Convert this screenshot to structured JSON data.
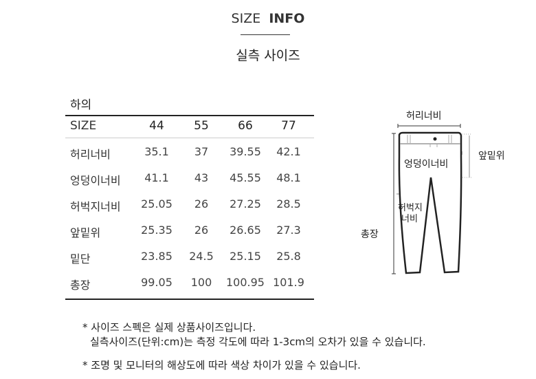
{
  "header": {
    "title_light": "SIZE",
    "title_bold": "INFO",
    "subtitle": "실측 사이즈"
  },
  "table": {
    "category": "하의",
    "columns": [
      "SIZE",
      "44",
      "55",
      "66",
      "77"
    ],
    "rows": [
      {
        "label": "허리너비",
        "values": [
          "35.1",
          "37",
          "39.55",
          "42.1"
        ]
      },
      {
        "label": "엉덩이너비",
        "values": [
          "41.1",
          "43",
          "45.55",
          "48.1"
        ]
      },
      {
        "label": "허벅지너비",
        "values": [
          "25.05",
          "26",
          "27.25",
          "28.5"
        ]
      },
      {
        "label": "앞밑위",
        "values": [
          "25.35",
          "26",
          "26.65",
          "27.3"
        ]
      },
      {
        "label": "밑단",
        "values": [
          "23.85",
          "24.5",
          "25.15",
          "25.8"
        ]
      },
      {
        "label": "총장",
        "values": [
          "99.05",
          "100",
          "100.95",
          "101.9"
        ]
      }
    ]
  },
  "diagram": {
    "waist": "허리너비",
    "hip": "엉덩이너비",
    "rise": "앞밑위",
    "thigh_1": "허벅지",
    "thigh_2": "너비",
    "length": "총장"
  },
  "notes": [
    "* 사이즈 스펙은 실제 상품사이즈입니다.",
    "실측사이즈(단위:cm)는 측정 각도에 따라 1-3cm의 오차가 있을 수 있습니다.",
    "* 조명 및 모니터의 해상도에 따라 색상 차이가 있을 수 있습니다."
  ]
}
